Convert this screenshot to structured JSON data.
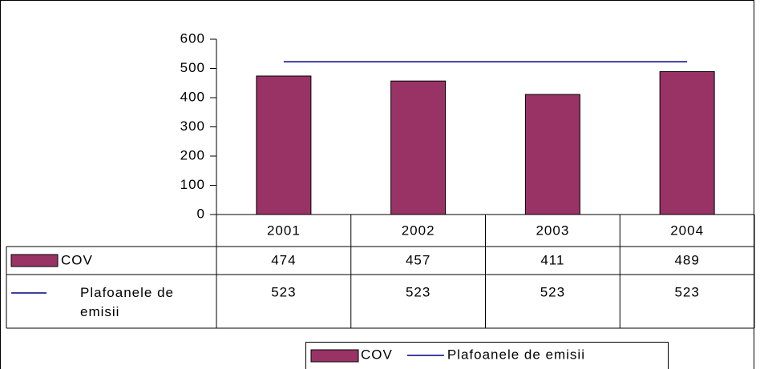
{
  "chart_data": {
    "type": "bar",
    "categories": [
      "2001",
      "2002",
      "2003",
      "2004"
    ],
    "series": [
      {
        "name": "COV",
        "color": "#993366",
        "type": "bar",
        "values": [
          474,
          457,
          411,
          489
        ]
      },
      {
        "name": "Plafoanele de emisii",
        "color": "#000080",
        "type": "line",
        "values": [
          523,
          523,
          523,
          523
        ]
      }
    ],
    "ylim": [
      0,
      600
    ],
    "yticks": [
      0,
      100,
      200,
      300,
      400,
      500,
      600
    ],
    "grid": false,
    "legend": "bottom"
  }
}
